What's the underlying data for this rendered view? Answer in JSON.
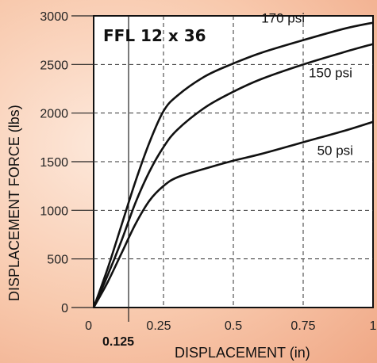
{
  "chart_data": {
    "type": "line",
    "title": "FFL 12 x 36",
    "xlabel": "DISPLACEMENT (in)",
    "ylabel": "DISPLACEMENT FORCE (lbs)",
    "xlim": [
      0,
      1
    ],
    "ylim": [
      0,
      3000
    ],
    "xticks": [
      0,
      0.25,
      0.5,
      0.75,
      1
    ],
    "xtick_labels": [
      "0",
      "0.25",
      "0.5",
      "0.75",
      "1"
    ],
    "yticks": [
      0,
      500,
      1000,
      1500,
      2000,
      2500,
      3000
    ],
    "ytick_labels": [
      "0",
      "500",
      "1000",
      "1500",
      "2000",
      "2500",
      "3000"
    ],
    "marker_line": {
      "x": 0.125,
      "label": "0.125"
    },
    "grid": true,
    "series": [
      {
        "name": "170 psi",
        "x": [
          0,
          0.05,
          0.1,
          0.15,
          0.2,
          0.25,
          0.3,
          0.4,
          0.5,
          0.6,
          0.75,
          0.9,
          1
        ],
        "y": [
          0,
          400,
          850,
          1300,
          1700,
          2020,
          2180,
          2380,
          2510,
          2620,
          2750,
          2870,
          2930
        ]
      },
      {
        "name": "150 psi",
        "x": [
          0,
          0.05,
          0.1,
          0.15,
          0.2,
          0.25,
          0.3,
          0.4,
          0.5,
          0.6,
          0.75,
          0.9,
          1
        ],
        "y": [
          0,
          330,
          690,
          1080,
          1400,
          1650,
          1830,
          2060,
          2220,
          2350,
          2500,
          2630,
          2710
        ]
      },
      {
        "name": "50 psi",
        "x": [
          0,
          0.05,
          0.1,
          0.15,
          0.2,
          0.25,
          0.3,
          0.4,
          0.5,
          0.6,
          0.75,
          0.9,
          1
        ],
        "y": [
          0,
          260,
          560,
          860,
          1100,
          1250,
          1340,
          1430,
          1510,
          1580,
          1700,
          1820,
          1910
        ]
      }
    ]
  }
}
